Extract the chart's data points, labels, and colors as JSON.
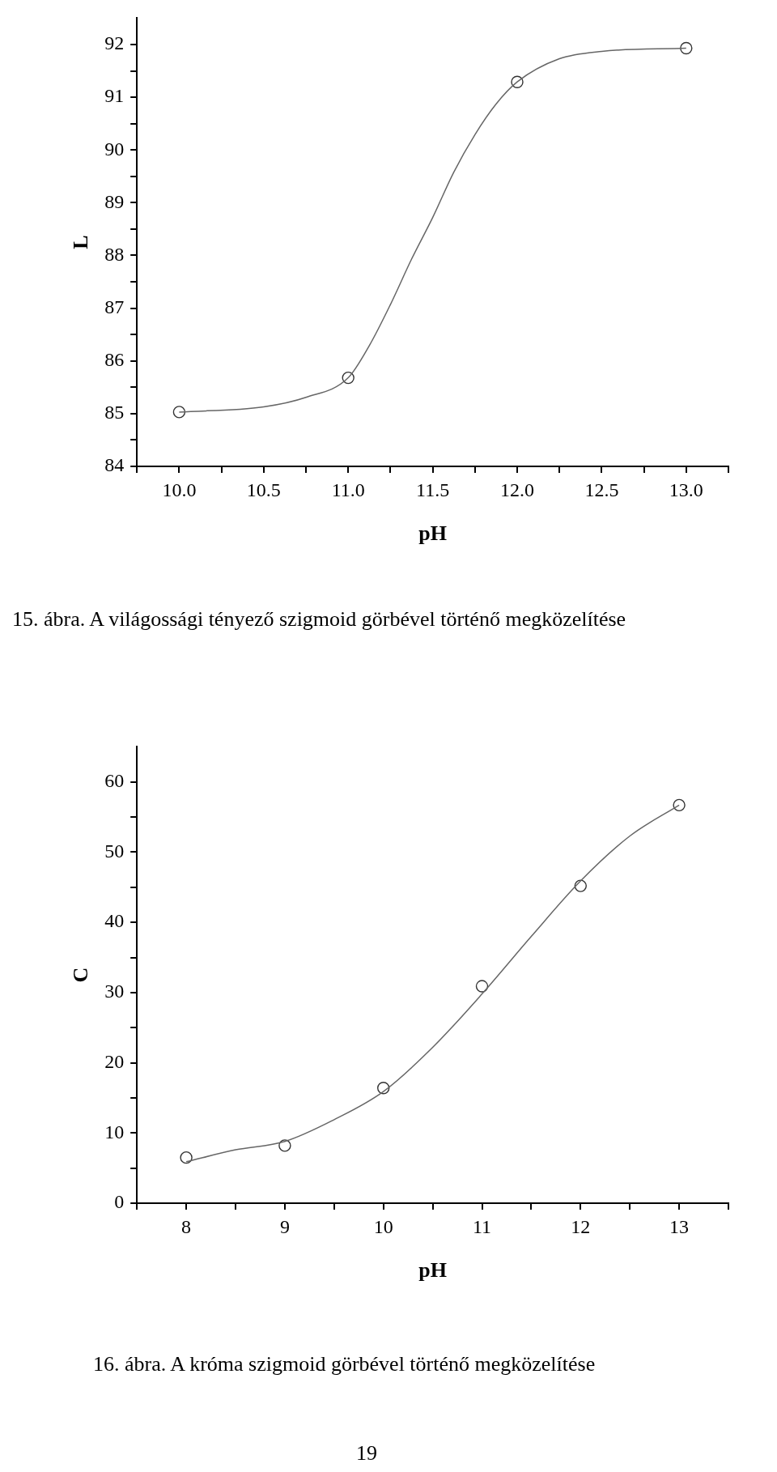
{
  "chart_data": [
    {
      "type": "scatter",
      "xlabel": "pH",
      "ylabel": "L",
      "xlim": [
        9.75,
        13.25
      ],
      "ylim": [
        84,
        92.5
      ],
      "xticks": [
        {
          "value": 9.75,
          "label": null
        },
        {
          "value": 10,
          "label": "10.0"
        },
        {
          "value": 10.25,
          "label": null
        },
        {
          "value": 10.5,
          "label": "10.5"
        },
        {
          "value": 10.75,
          "label": null
        },
        {
          "value": 11,
          "label": "11.0"
        },
        {
          "value": 11.25,
          "label": null
        },
        {
          "value": 11.5,
          "label": "11.5"
        },
        {
          "value": 11.75,
          "label": null
        },
        {
          "value": 12,
          "label": "12.0"
        },
        {
          "value": 12.25,
          "label": null
        },
        {
          "value": 12.5,
          "label": "12.5"
        },
        {
          "value": 12.75,
          "label": null
        },
        {
          "value": 13,
          "label": "13.0"
        },
        {
          "value": 13.25,
          "label": null
        }
      ],
      "yticks": [
        84,
        {
          "value": 84.5,
          "label": null
        },
        85,
        {
          "value": 85.5,
          "label": null
        },
        86,
        {
          "value": 86.5,
          "label": null
        },
        87,
        {
          "value": 87.5,
          "label": null
        },
        88,
        {
          "value": 88.5,
          "label": null
        },
        89,
        {
          "value": 89.5,
          "label": null
        },
        90,
        {
          "value": 90.5,
          "label": null
        },
        91,
        {
          "value": 91.5,
          "label": null
        },
        92
      ],
      "grid": false,
      "legend": false,
      "series": [
        {
          "type": "scatter",
          "marker": "circle",
          "color": "#333333",
          "x": [
            10,
            11,
            12,
            13
          ],
          "values": [
            85.03,
            85.68,
            91.29,
            91.93
          ]
        },
        {
          "type": "line",
          "marker": "none",
          "line_style": "solid",
          "color": "#666666",
          "x": [
            10,
            10.5,
            10.75,
            11,
            11.125,
            11.25,
            11.375,
            11.5,
            11.625,
            11.75,
            11.875,
            12,
            12.25,
            12.5,
            13
          ],
          "values": [
            85.03,
            85.13,
            85.31,
            85.68,
            86.29,
            87.07,
            87.93,
            88.72,
            89.58,
            90.29,
            90.87,
            91.29,
            91.73,
            91.87,
            91.93
          ]
        }
      ],
      "annotations": [
        "15. ábra. A világossági tényező szigmoid görbével történő megközelítése"
      ]
    },
    {
      "type": "scatter",
      "xlabel": "pH",
      "ylabel": "C",
      "xlim": [
        7.5,
        13.5
      ],
      "ylim": [
        0,
        65
      ],
      "xticks": [
        {
          "value": 7.5,
          "label": null
        },
        8,
        {
          "value": 8.5,
          "label": null
        },
        9,
        {
          "value": 9.5,
          "label": null
        },
        10,
        {
          "value": 10.5,
          "label": null
        },
        11,
        {
          "value": 11.5,
          "label": null
        },
        12,
        {
          "value": 12.5,
          "label": null
        },
        13,
        {
          "value": 13.5,
          "label": null
        }
      ],
      "yticks": [
        0,
        {
          "value": 5,
          "label": null
        },
        10,
        {
          "value": 15,
          "label": null
        },
        20,
        {
          "value": 25,
          "label": null
        },
        30,
        {
          "value": 35,
          "label": null
        },
        40,
        {
          "value": 45,
          "label": null
        },
        50,
        {
          "value": 55,
          "label": null
        },
        60
      ],
      "grid": false,
      "legend": false,
      "series": [
        {
          "type": "scatter",
          "marker": "circle",
          "color": "#333333",
          "x": [
            8,
            9,
            10,
            11,
            12,
            13
          ],
          "values": [
            6.5,
            8.2,
            16.4,
            30.9,
            45.2,
            56.7
          ]
        },
        {
          "type": "line",
          "marker": "none",
          "line_style": "solid",
          "color": "#666666",
          "x": [
            8,
            8.5,
            9,
            9.5,
            10,
            10.5,
            11,
            11.5,
            12,
            12.5,
            13
          ],
          "values": [
            5.9,
            7.6,
            8.8,
            11.9,
            15.9,
            22.2,
            29.8,
            38.0,
            45.9,
            52.3,
            56.7
          ]
        }
      ],
      "annotations": [
        "16. ábra. A króma szigmoid görbével történő megközelítése",
        "19"
      ]
    }
  ]
}
